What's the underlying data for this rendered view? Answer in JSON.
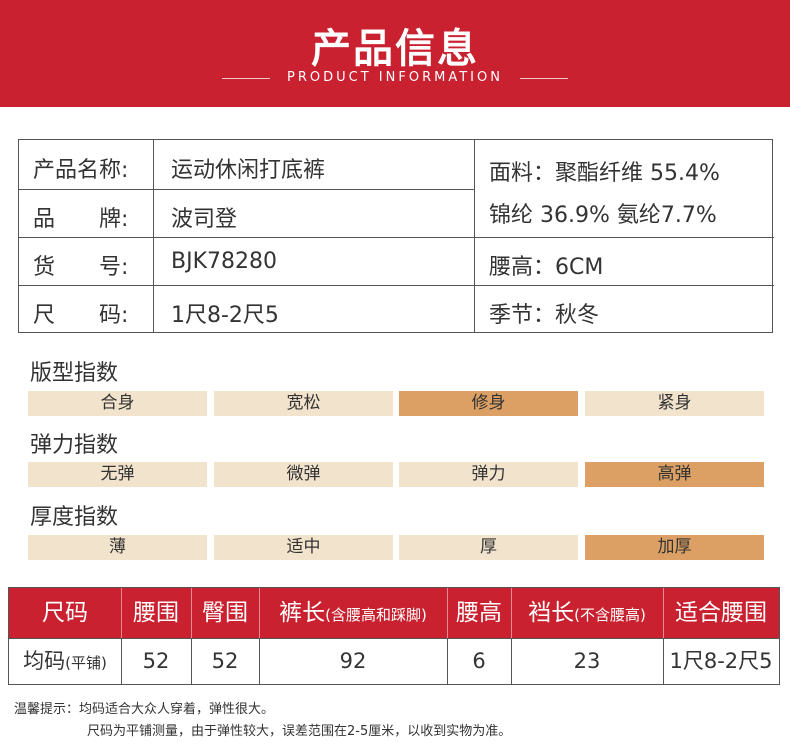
{
  "header": {
    "title": "产品信息",
    "subtitle": "PRODUCT INFORMATION"
  },
  "info": {
    "name_label": "产品名称:",
    "name_value": "运动休闲打底裤",
    "brand_label": "品　　牌:",
    "brand_value": "波司登",
    "sku_label": "货　　号:",
    "sku_value": "BJK78280",
    "size_label": "尺　　码:",
    "size_value": "1尺8-2尺5",
    "fabric_line1": "面料：聚酯纤维 55.4%",
    "fabric_line2": "锦纶 36.9% 氨纶7.7%",
    "waist_label": "腰高：6CM",
    "season_label": "季节：秋冬"
  },
  "indices": [
    {
      "title": "版型指数",
      "options": [
        "合身",
        "宽松",
        "修身",
        "紧身"
      ],
      "selected": "修身"
    },
    {
      "title": "弹力指数",
      "options": [
        "无弹",
        "微弹",
        "弹力",
        "高弹"
      ],
      "selected": "高弹"
    },
    {
      "title": "厚度指数",
      "options": [
        "薄",
        "适中",
        "厚",
        "加厚"
      ],
      "selected": "加厚"
    }
  ],
  "size_table": {
    "headers": [
      {
        "main": "尺码",
        "note": ""
      },
      {
        "main": "腰围",
        "note": ""
      },
      {
        "main": "臀围",
        "note": ""
      },
      {
        "main": "裤长",
        "note": "(含腰高和踩脚)"
      },
      {
        "main": "腰高",
        "note": ""
      },
      {
        "main": "裆长",
        "note": "(不含腰高)"
      },
      {
        "main": "适合腰围",
        "note": ""
      }
    ],
    "row": [
      {
        "main": "均码",
        "note": "(平铺)"
      },
      {
        "main": "52",
        "note": ""
      },
      {
        "main": "52",
        "note": ""
      },
      {
        "main": "92",
        "note": ""
      },
      {
        "main": "6",
        "note": ""
      },
      {
        "main": "23",
        "note": ""
      },
      {
        "main": "1尺8-2尺5",
        "note": ""
      }
    ]
  },
  "notes": {
    "line1": "温馨提示：均码适合大众人穿着，弹性很大。",
    "line2": "尺码为平铺测量，由于弹性较大，误差范围在2-5厘米，以收到实物为准。"
  },
  "colors": {
    "brand_red": "#c9212f",
    "option_bg": "#f2e3cc",
    "option_active": "#dca064"
  }
}
